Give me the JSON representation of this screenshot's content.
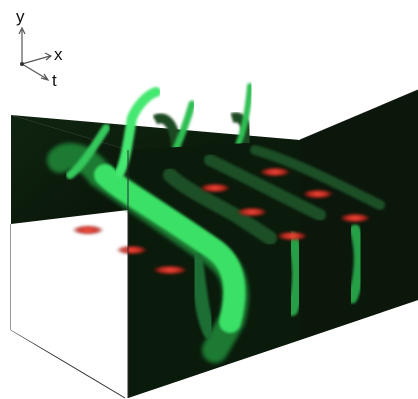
{
  "axes": {
    "y_label": "y",
    "x_label": "x",
    "t_label": "t"
  },
  "volume": {
    "background_color": "#0c1a0c",
    "signal_color": "#2fd35a",
    "highlight_color": "#c62c2c",
    "frame_color": "#444444",
    "panels": [
      "xy-slice-front",
      "xt-slice-side",
      "yt-slice-back",
      "empty-volume-box"
    ]
  }
}
